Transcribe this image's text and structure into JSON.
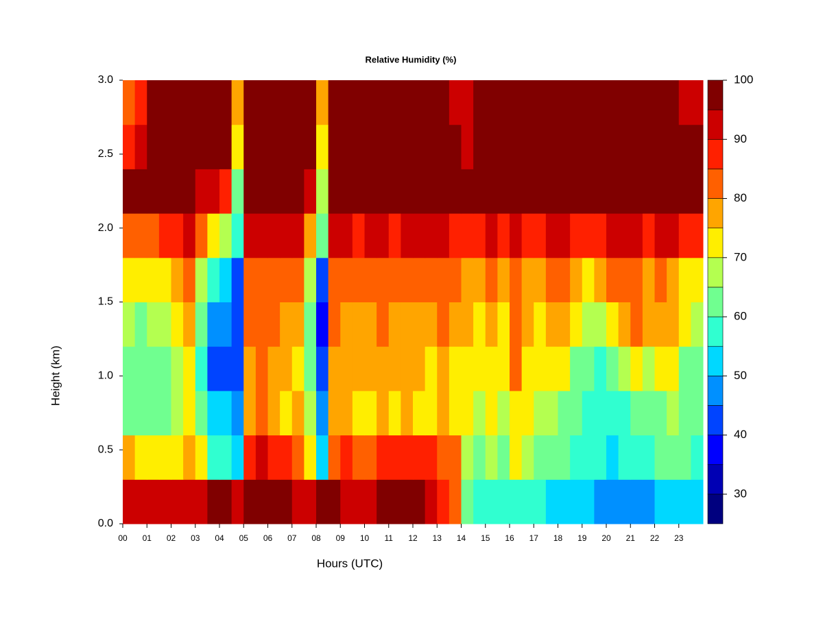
{
  "chart_data": {
    "type": "heatmap",
    "title": "Relative Humidity (%)",
    "xlabel": "Hours (UTC)",
    "ylabel": "Height (km)",
    "xlim": [
      0,
      24
    ],
    "ylim": [
      0,
      3
    ],
    "xticks": [
      {
        "value": 0,
        "label": "00"
      },
      {
        "value": 1,
        "label": "01"
      },
      {
        "value": 2,
        "label": "02"
      },
      {
        "value": 3,
        "label": "03"
      },
      {
        "value": 4,
        "label": "04"
      },
      {
        "value": 5,
        "label": "05"
      },
      {
        "value": 6,
        "label": "06"
      },
      {
        "value": 7,
        "label": "07"
      },
      {
        "value": 8,
        "label": "08"
      },
      {
        "value": 9,
        "label": "09"
      },
      {
        "value": 10,
        "label": "10"
      },
      {
        "value": 11,
        "label": "11"
      },
      {
        "value": 12,
        "label": "12"
      },
      {
        "value": 13,
        "label": "13"
      },
      {
        "value": 14,
        "label": "14"
      },
      {
        "value": 15,
        "label": "15"
      },
      {
        "value": 16,
        "label": "16"
      },
      {
        "value": 17,
        "label": "17"
      },
      {
        "value": 18,
        "label": "18"
      },
      {
        "value": 19,
        "label": "19"
      },
      {
        "value": 20,
        "label": "20"
      },
      {
        "value": 21,
        "label": "21"
      },
      {
        "value": 22,
        "label": "22"
      },
      {
        "value": 23,
        "label": "23"
      }
    ],
    "yticks": [
      {
        "value": 0,
        "label": "0.0"
      },
      0.5,
      {
        "value": 1,
        "label": "1.0"
      },
      1.5,
      {
        "value": 2,
        "label": "2.0"
      },
      2.5,
      {
        "value": 3,
        "label": "3.0"
      }
    ],
    "x": [
      0.25,
      0.75,
      1.25,
      1.75,
      2.25,
      2.75,
      3.25,
      3.75,
      4.25,
      4.75,
      5.25,
      5.75,
      6.25,
      6.75,
      7.25,
      7.75,
      8.25,
      8.75,
      9.25,
      9.75,
      10.25,
      10.75,
      11.25,
      11.75,
      12.25,
      12.75,
      13.25,
      13.75,
      14.25,
      14.75,
      15.25,
      15.75,
      16.25,
      16.75,
      17.25,
      17.75,
      18.25,
      18.75,
      19.25,
      19.75,
      20.25,
      20.75,
      21.25,
      21.75,
      22.25,
      22.75,
      23.25,
      23.75
    ],
    "y": [
      0.15,
      0.45,
      0.75,
      1.05,
      1.35,
      1.65,
      1.95,
      2.25,
      2.55,
      2.85
    ],
    "z": [
      [
        92,
        93,
        93,
        92,
        92,
        93,
        94,
        95,
        95,
        93,
        96,
        97,
        96,
        95,
        94,
        94,
        96,
        95,
        94,
        93,
        94,
        95,
        95,
        96,
        95,
        93,
        88,
        82,
        62,
        58,
        58,
        57,
        58,
        56,
        55,
        54,
        53,
        52,
        50,
        48,
        46,
        45,
        47,
        48,
        50,
        52,
        53,
        52
      ],
      [
        75,
        72,
        70,
        70,
        72,
        78,
        70,
        55,
        55,
        52,
        88,
        90,
        86,
        85,
        84,
        70,
        52,
        80,
        85,
        84,
        84,
        85,
        86,
        87,
        86,
        86,
        84,
        80,
        66,
        64,
        66,
        64,
        70,
        66,
        64,
        62,
        60,
        58,
        56,
        55,
        54,
        55,
        56,
        58,
        60,
        62,
        60,
        58
      ],
      [
        64,
        62,
        62,
        63,
        66,
        70,
        62,
        52,
        50,
        48,
        78,
        80,
        76,
        74,
        75,
        66,
        46,
        76,
        76,
        74,
        74,
        76,
        74,
        75,
        74,
        74,
        76,
        74,
        70,
        68,
        70,
        68,
        74,
        70,
        68,
        66,
        64,
        60,
        58,
        56,
        56,
        58,
        60,
        62,
        64,
        66,
        62,
        60
      ],
      [
        62,
        61,
        62,
        64,
        68,
        72,
        58,
        44,
        44,
        42,
        78,
        80,
        76,
        76,
        74,
        62,
        40,
        78,
        76,
        75,
        76,
        78,
        76,
        77,
        76,
        74,
        78,
        74,
        72,
        70,
        74,
        70,
        80,
        72,
        70,
        74,
        72,
        64,
        60,
        58,
        62,
        66,
        70,
        68,
        70,
        70,
        64,
        62
      ],
      [
        66,
        64,
        66,
        68,
        72,
        76,
        62,
        48,
        48,
        40,
        80,
        80,
        80,
        78,
        78,
        64,
        38,
        80,
        78,
        78,
        78,
        80,
        78,
        78,
        78,
        76,
        80,
        78,
        76,
        74,
        76,
        74,
        82,
        76,
        74,
        78,
        76,
        72,
        68,
        68,
        72,
        76,
        80,
        76,
        76,
        76,
        70,
        68
      ],
      [
        72,
        70,
        72,
        74,
        76,
        80,
        66,
        55,
        52,
        40,
        82,
        82,
        82,
        82,
        80,
        66,
        42,
        82,
        80,
        80,
        80,
        82,
        80,
        80,
        80,
        80,
        82,
        80,
        78,
        78,
        80,
        78,
        84,
        78,
        78,
        80,
        80,
        76,
        74,
        76,
        80,
        82,
        82,
        78,
        80,
        78,
        74,
        72
      ],
      [
        84,
        82,
        84,
        86,
        88,
        90,
        80,
        70,
        68,
        55,
        92,
        90,
        90,
        90,
        90,
        78,
        60,
        90,
        90,
        88,
        90,
        90,
        88,
        90,
        90,
        90,
        90,
        88,
        88,
        88,
        90,
        88,
        92,
        88,
        88,
        90,
        90,
        88,
        88,
        88,
        90,
        90,
        90,
        88,
        90,
        90,
        88,
        86
      ],
      [
        96,
        95,
        96,
        97,
        98,
        99,
        90,
        90,
        86,
        62,
        99,
        99,
        99,
        99,
        98,
        92,
        68,
        99,
        99,
        99,
        99,
        99,
        99,
        99,
        99,
        99,
        99,
        99,
        99,
        98,
        99,
        99,
        99,
        99,
        99,
        99,
        99,
        99,
        99,
        99,
        99,
        99,
        99,
        99,
        99,
        99,
        99,
        99
      ],
      [
        88,
        92,
        96,
        98,
        99,
        99,
        95,
        99,
        98,
        70,
        99,
        99,
        99,
        99,
        99,
        96,
        72,
        99,
        99,
        99,
        99,
        99,
        99,
        99,
        99,
        99,
        99,
        96,
        94,
        99,
        99,
        99,
        99,
        99,
        99,
        99,
        99,
        99,
        99,
        99,
        99,
        99,
        99,
        99,
        99,
        99,
        97,
        96
      ],
      [
        80,
        88,
        96,
        98,
        99,
        99,
        95,
        99,
        99,
        75,
        96,
        99,
        99,
        99,
        96,
        98,
        76,
        99,
        99,
        99,
        99,
        99,
        99,
        99,
        99,
        99,
        96,
        92,
        90,
        96,
        99,
        99,
        99,
        99,
        99,
        99,
        99,
        99,
        99,
        99,
        99,
        99,
        99,
        99,
        99,
        99,
        94,
        90
      ]
    ],
    "colorbar": {
      "levels": [
        25,
        30,
        35,
        40,
        45,
        50,
        55,
        60,
        65,
        70,
        75,
        80,
        85,
        90,
        95,
        100
      ],
      "colors": [
        "#00007f",
        "#0000b4",
        "#0000ff",
        "#0044ff",
        "#0090ff",
        "#00d8ff",
        "#30ffd0",
        "#70ff90",
        "#b4ff50",
        "#ffee00",
        "#ffa500",
        "#ff6000",
        "#ff2000",
        "#cc0000",
        "#800000"
      ],
      "ticks": [
        30,
        40,
        50,
        60,
        70,
        80,
        90,
        100
      ]
    }
  }
}
